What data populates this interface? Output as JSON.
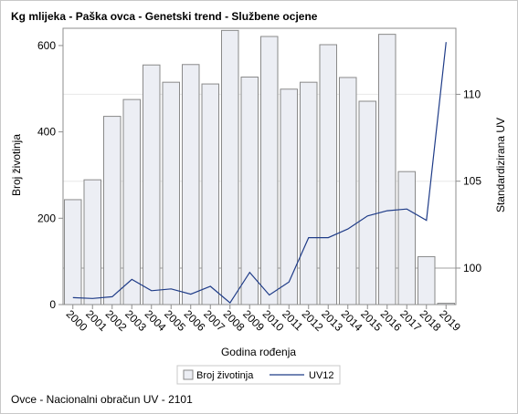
{
  "title": "Kg mlijeka - Paška ovca - Genetski trend - Službene ocjene",
  "footnote": "Ovce - Nacionalni obračun UV - 2101",
  "colors": {
    "bar_fill": "#eceef4",
    "bar_stroke": "#8a8a8a",
    "line": "#1f3c88",
    "grid": "#e8e8e8",
    "axis": "#8c8c8c",
    "ref_line": "#b4b4b4"
  },
  "chart_data": {
    "type": "bar+line",
    "xlabel": "Godina rođenja",
    "ylabel_left": "Broj životinja",
    "ylabel_right": "Standardizirana UV",
    "y_left_range": [
      0,
      640
    ],
    "y_left_ticks": [
      0,
      200,
      400,
      600
    ],
    "y_right_range": [
      97.9,
      113.8
    ],
    "y_right_ticks": [
      100,
      105,
      110
    ],
    "right_reference_line": 100,
    "grid": true,
    "legend_position": "bottom",
    "categories": [
      "2000",
      "2001",
      "2002",
      "2003",
      "2004",
      "2005",
      "2006",
      "2007",
      "2008",
      "2009",
      "2010",
      "2011",
      "2012",
      "2013",
      "2014",
      "2015",
      "2016",
      "2017",
      "2018",
      "2019"
    ],
    "series": [
      {
        "name": "Broj životinja",
        "type": "bar",
        "axis": "left",
        "values": [
          243,
          289,
          436,
          475,
          555,
          515,
          556,
          511,
          635,
          527,
          621,
          499,
          515,
          602,
          526,
          471,
          626,
          308,
          111,
          3
        ]
      },
      {
        "name": "UV12",
        "type": "line",
        "axis": "right",
        "values": [
          98.3,
          98.25,
          98.35,
          99.35,
          98.7,
          98.8,
          98.5,
          98.95,
          98.0,
          99.75,
          98.45,
          99.2,
          101.75,
          101.75,
          102.25,
          103.0,
          103.3,
          103.4,
          102.75,
          113.0
        ]
      }
    ]
  }
}
